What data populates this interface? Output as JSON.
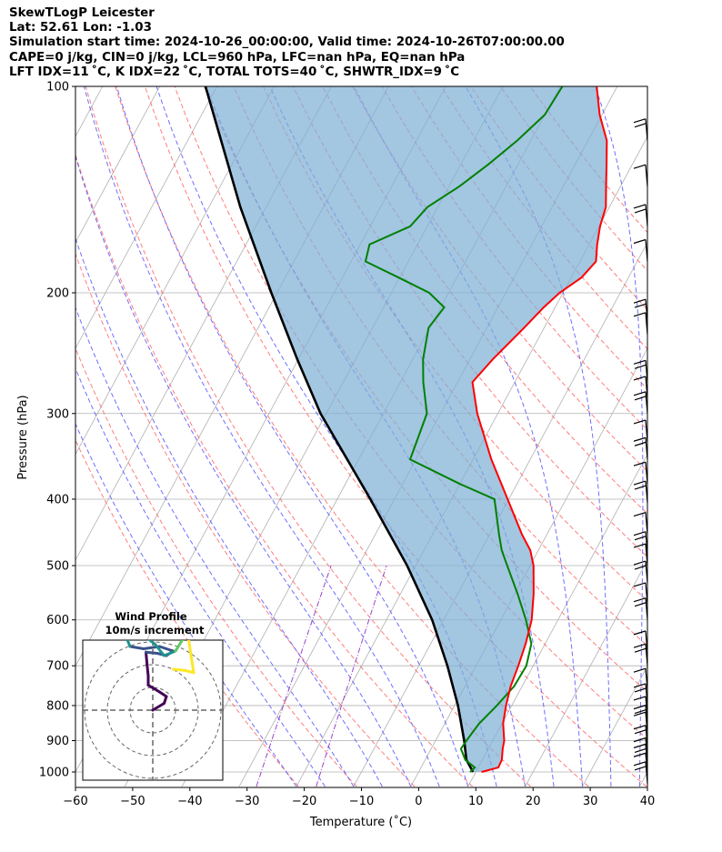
{
  "header": {
    "title": "SkewTLogP Leicester",
    "latlon": "Lat: 52.61   Lon: -1.03",
    "times": "Simulation start time: 2024-10-26_00:00:00, Valid time: 2024-10-26T07:00:00.00",
    "indices1": "CAPE=0 j/kg, CIN=0 j/kg, LCL=960 hPa, LFC=nan hPa, EQ=nan hPa",
    "indices2": "LFT IDX=11 ˚C, K IDX=22 ˚C, TOTAL TOTS=40 ˚C, SHWTR_IDX=9 ˚C"
  },
  "chart_data": {
    "type": "line",
    "subtype": "skew-T log-P diagram",
    "xlabel": "Temperature (˚C)",
    "ylabel": "Pressure (hPa)",
    "xlim": [
      -60,
      40
    ],
    "ylim": [
      1050,
      100
    ],
    "y_scale": "log",
    "x_ticks": [
      -60,
      -50,
      -40,
      -30,
      -20,
      -10,
      0,
      10,
      20,
      30,
      40
    ],
    "x_tick_labels": [
      "−60",
      "−50",
      "−40",
      "−30",
      "−20",
      "−10",
      "0",
      "10",
      "20",
      "30",
      "40"
    ],
    "y_ticks": [
      1000,
      900,
      800,
      700,
      600,
      500,
      400,
      300,
      200,
      100
    ],
    "y_tick_labels": [
      "1000",
      "900",
      "800",
      "700",
      "600",
      "500",
      "400",
      "300",
      "200",
      "100"
    ],
    "grid": true,
    "colors": {
      "temperature": "#ff0000",
      "dewpoint": "#008000",
      "parcel": "#000000",
      "fill": "#7fb0d5",
      "dry_adiabat": "#ff6666",
      "moist_adiabat": "#5555ff",
      "mixing_ratio": "#9944cc",
      "isotherm": "#b0b0b0"
    },
    "series": [
      {
        "key": "temperature",
        "p": [
          1000,
          985,
          960,
          925,
          900,
          850,
          800,
          750,
          700,
          650,
          600,
          550,
          500,
          475,
          450,
          400,
          350,
          300,
          270,
          250,
          225,
          210,
          200,
          190,
          180,
          170,
          160,
          150,
          140,
          130,
          120,
          110,
          100
        ],
        "t": [
          11,
          13.5,
          13.4,
          12.5,
          12,
          10.2,
          9,
          8,
          7.4,
          6.6,
          5.4,
          3.3,
          0.6,
          -1.4,
          -4.4,
          -10.2,
          -16.8,
          -23.6,
          -27.4,
          -26,
          -23.5,
          -22,
          -20.6,
          -18.2,
          -17.2,
          -18.6,
          -19.8,
          -20.6,
          -22.5,
          -24.5,
          -26.7,
          -30.4,
          -33.6
        ]
      },
      {
        "key": "dewpoint",
        "p": [
          1000,
          985,
          960,
          925,
          900,
          850,
          800,
          750,
          700,
          650,
          600,
          550,
          500,
          475,
          450,
          400,
          380,
          350,
          300,
          270,
          250,
          225,
          210,
          200,
          190,
          180,
          170,
          160,
          150,
          140,
          130,
          120,
          110,
          100
        ],
        "t": [
          9,
          9.4,
          7,
          5.2,
          5.4,
          6,
          7.4,
          8.6,
          8.8,
          7.6,
          4.4,
          0.5,
          -4,
          -6.4,
          -8.4,
          -12.5,
          -20,
          -31,
          -32.4,
          -36,
          -38.2,
          -40.2,
          -39.4,
          -43.4,
          -50.2,
          -57.5,
          -58.4,
          -53,
          -51.8,
          -48.2,
          -45.2,
          -42.4,
          -40,
          -39.6
        ]
      },
      {
        "key": "parcel",
        "p": [
          1000,
          960,
          900,
          800,
          700,
          600,
          500,
          400,
          300,
          250,
          200,
          150,
          100
        ],
        "t": [
          9.5,
          7.2,
          5,
          0.6,
          -5,
          -12,
          -21.5,
          -34.2,
          -51,
          -60.2,
          -71,
          -84.5,
          -102
        ]
      }
    ],
    "annotation_data": {
      "wind_barbs_pressure_hpa": [
        1040,
        1010,
        980,
        960,
        920,
        880,
        860,
        835,
        800,
        760,
        700,
        670,
        600,
        570,
        530,
        500,
        480,
        450,
        405,
        380,
        350,
        330,
        300,
        285,
        270,
        230,
        220,
        180,
        160,
        140,
        120
      ]
    },
    "inset": {
      "title": "Wind Profile",
      "subtitle": "10m/s increment",
      "type": "hodograph",
      "u": [
        0,
        1,
        1.2,
        0.6,
        -0.4,
        -0.4,
        -0.5,
        -0.6,
        0.4,
        1.2,
        1.8,
        0.6,
        -0.8,
        -2,
        -2.2,
        -1.8,
        -0.8,
        0.2,
        1,
        2,
        2.8,
        2.4,
        1.4,
        0.8,
        1.4,
        2,
        2.2,
        2.6,
        3.2,
        3,
        3.6,
        2.8,
        1.8
      ],
      "v": [
        0,
        0.6,
        1.2,
        1.6,
        2.2,
        3,
        4,
        5.1,
        5,
        4.8,
        5.2,
        5.6,
        5.4,
        5.6,
        6.1,
        6.6,
        6.6,
        5.8,
        4.8,
        5.2,
        6.5,
        7,
        7.2,
        6.8,
        6.4,
        6.8,
        7.1,
        7.3,
        7.0,
        7.2,
        3.3,
        3.5,
        3.6
      ]
    }
  }
}
